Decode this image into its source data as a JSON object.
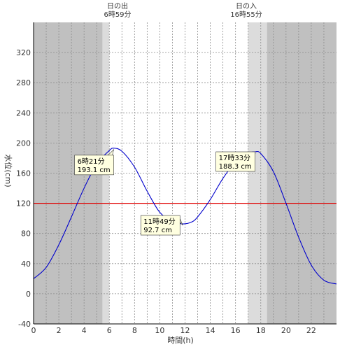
{
  "chart_data": {
    "type": "line",
    "xlabel": "時間(h)",
    "ylabel": "水位(cm)",
    "xlim": [
      0,
      24
    ],
    "ylim": [
      -40,
      360
    ],
    "x_ticks": [
      0,
      2,
      4,
      6,
      8,
      10,
      12,
      14,
      16,
      18,
      20,
      22
    ],
    "y_ticks": [
      -40,
      0,
      40,
      80,
      120,
      160,
      200,
      240,
      280,
      320
    ],
    "grid": true,
    "reference_line": {
      "y": 120,
      "color": "#e00000"
    },
    "series": [
      {
        "color": "#0000cc",
        "x": [
          0,
          1,
          2,
          3,
          4,
          5,
          6,
          6.35,
          7,
          8,
          9,
          10,
          11,
          11.82,
          12.5,
          13,
          14,
          15,
          16,
          17,
          17.55,
          18,
          19,
          20,
          21,
          22,
          23,
          24
        ],
        "y": [
          20,
          35,
          65,
          102,
          140,
          172,
          190,
          193.1,
          189,
          168,
          136,
          108,
          96,
          92.7,
          95,
          102,
          125,
          153,
          175,
          186,
          188.3,
          186,
          162,
          120,
          75,
          38,
          18,
          13
        ]
      }
    ],
    "sunrise": {
      "label": "日の出",
      "time": "6時59分",
      "value": 6.98
    },
    "sunset": {
      "label": "日の入",
      "time": "16時55分",
      "value": 16.92
    },
    "shading": {
      "night_color": "#c0c0c0",
      "twilight_color": "#dcdcdc",
      "day_color": "#ffffff",
      "twilight_morning": [
        5.45,
        5.45,
        6.0
      ],
      "twilight_evening": [
        17.0,
        18.5
      ]
    },
    "annotations": [
      {
        "time": "6時21分",
        "value": "193.1 cm",
        "x": 6.35,
        "y": 193.1
      },
      {
        "time": "11時49分",
        "value": "92.7 cm",
        "x": 11.82,
        "y": 92.7
      },
      {
        "time": "17時33分",
        "value": "188.3 cm",
        "x": 17.55,
        "y": 188.3
      }
    ]
  }
}
